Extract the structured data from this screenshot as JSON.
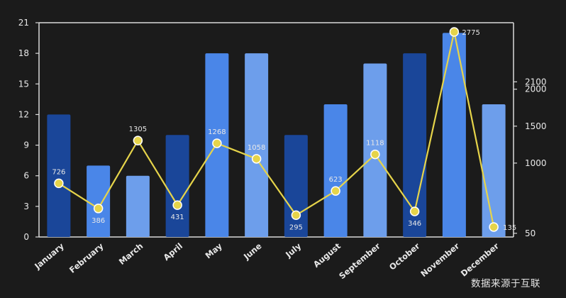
{
  "chart_data": {
    "type": "bar+line",
    "categories": [
      "January",
      "February",
      "March",
      "April",
      "May",
      "June",
      "July",
      "August",
      "September",
      "October",
      "November",
      "December"
    ],
    "bar_series": {
      "values": [
        12,
        7,
        6,
        10,
        18,
        18,
        10,
        13,
        17,
        18,
        20,
        13
      ],
      "colors": [
        "#1a4699",
        "#4a86e8",
        "#6d9eeb",
        "#1a4699",
        "#4a86e8",
        "#6d9eeb",
        "#1a4699",
        "#4a86e8",
        "#6d9eeb",
        "#1a4699",
        "#4a86e8",
        "#6d9eeb"
      ],
      "axis": "left"
    },
    "line_series": {
      "values": [
        726,
        386,
        1305,
        431,
        1268,
        1058,
        295,
        623,
        1118,
        346,
        2775,
        135
      ],
      "labels": [
        "726",
        "386",
        "1305",
        "431",
        "1268",
        "1058",
        "295",
        "623",
        "1118",
        "346",
        "2775",
        "135"
      ],
      "color": "#e6d44a",
      "axis": "right"
    },
    "left_axis": {
      "ylim": [
        0,
        21
      ],
      "ticks": [
        "0",
        "3",
        "6",
        "9",
        "12",
        "15",
        "18",
        "21"
      ]
    },
    "right_axis": {
      "ylim": [
        0,
        2900
      ],
      "ticks": [
        "50",
        "1000",
        "1500",
        "2000",
        "2100"
      ],
      "tick_values": [
        50,
        1000,
        1500,
        2000,
        2100
      ]
    }
  },
  "source_text": "数据来源于互联"
}
